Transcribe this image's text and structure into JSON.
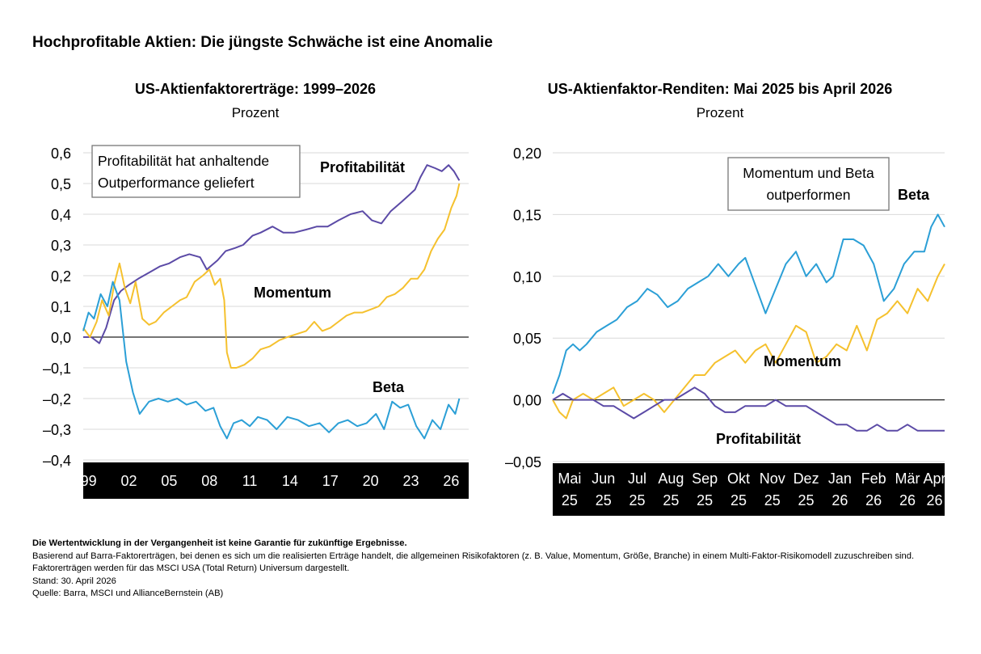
{
  "title": "Hochprofitable Aktien: Die jüngste Schwäche ist eine Anomalie",
  "footnotes": {
    "disclaimer": "Die Wertentwicklung in der Vergangenheit ist keine Garantie für zukünftige Ergebnisse.",
    "basis": "Basierend auf Barra-Faktorerträgen, bei denen es sich um die realisierten Erträge handelt, die allgemeinen Risikofaktoren (z. B. Value, Momentum, Größe, Branche) in einem Multi-Faktor-Risikomodell zuzuschreiben sind. Faktorerträgen werden für das MSCI USA (Total Return) Universum dargestellt.",
    "date": "Stand: 30. April 2026",
    "source": "Quelle: Barra, MSCI und AllianceBernstein (AB)"
  },
  "colors": {
    "profitability": "#5b4aa6",
    "momentum": "#f5c12e",
    "beta": "#2b9fd6",
    "axis_band": "#000000"
  },
  "chart_data": [
    {
      "type": "line",
      "title": "US-Aktienfaktorerträge: 1999–2026",
      "subtitle": "Prozent",
      "xlabel": "",
      "ylabel": "",
      "x_range": [
        1998.6,
        2027.3
      ],
      "ylim": [
        -0.4,
        0.6
      ],
      "y_ticks": [
        0.6,
        0.5,
        0.4,
        0.3,
        0.2,
        0.1,
        0.0,
        -0.1,
        -0.2,
        -0.3,
        -0.4
      ],
      "y_tick_labels": [
        "0,6",
        "0,5",
        "0,4",
        "0,3",
        "0,2",
        "0,1",
        "0,0",
        "–0,1",
        "–0,2",
        "–0,3",
        "–0,4"
      ],
      "x_tick_values": [
        1999,
        2002,
        2005,
        2008,
        2011,
        2014,
        2017,
        2020,
        2023,
        2026
      ],
      "x_tick_labels": [
        "99",
        "02",
        "05",
        "08",
        "11",
        "14",
        "17",
        "20",
        "23",
        "26"
      ],
      "annotation": [
        "Profitabilität hat anhaltende",
        "Outperformance geliefert"
      ],
      "series": [
        {
          "name": "Profitabilität",
          "color": "#5b4aa6",
          "x": [
            1998.6,
            1999.2,
            1999.8,
            2000.3,
            2000.9,
            2001.4,
            2002.0,
            2002.7,
            2003.5,
            2004.3,
            2005.0,
            2005.8,
            2006.5,
            2007.3,
            2007.8,
            2008.6,
            2009.2,
            2009.9,
            2010.5,
            2011.2,
            2011.8,
            2012.7,
            2013.5,
            2014.3,
            2015.2,
            2016.0,
            2016.8,
            2017.6,
            2018.5,
            2019.4,
            2020.1,
            2020.8,
            2021.5,
            2022.3,
            2022.8,
            2023.3,
            2023.7,
            2024.2,
            2024.8,
            2025.3,
            2025.8,
            2026.2,
            2026.6
          ],
          "values": [
            0.0,
            0.0,
            -0.02,
            0.03,
            0.12,
            0.15,
            0.17,
            0.19,
            0.21,
            0.23,
            0.24,
            0.26,
            0.27,
            0.26,
            0.22,
            0.25,
            0.28,
            0.29,
            0.3,
            0.33,
            0.34,
            0.36,
            0.34,
            0.34,
            0.35,
            0.36,
            0.36,
            0.38,
            0.4,
            0.41,
            0.38,
            0.37,
            0.41,
            0.44,
            0.46,
            0.48,
            0.52,
            0.56,
            0.55,
            0.54,
            0.56,
            0.54,
            0.51
          ]
        },
        {
          "name": "Momentum",
          "color": "#f5c12e",
          "x": [
            1998.6,
            1999.1,
            1999.6,
            2000.0,
            2000.5,
            2000.9,
            2001.3,
            2001.7,
            2002.1,
            2002.5,
            2003.0,
            2003.5,
            2004.0,
            2004.6,
            2005.2,
            2005.8,
            2006.3,
            2006.9,
            2007.5,
            2008.0,
            2008.4,
            2008.8,
            2009.1,
            2009.3,
            2009.6,
            2010.0,
            2010.6,
            2011.2,
            2011.8,
            2012.5,
            2013.2,
            2013.8,
            2014.5,
            2015.2,
            2015.8,
            2016.4,
            2017.0,
            2017.6,
            2018.2,
            2018.8,
            2019.4,
            2020.0,
            2020.6,
            2021.2,
            2021.8,
            2022.4,
            2023.0,
            2023.5,
            2024.0,
            2024.5,
            2025.0,
            2025.5,
            2026.0,
            2026.4,
            2026.6
          ],
          "values": [
            0.03,
            0.0,
            0.05,
            0.12,
            0.07,
            0.17,
            0.24,
            0.16,
            0.11,
            0.18,
            0.06,
            0.04,
            0.05,
            0.08,
            0.1,
            0.12,
            0.13,
            0.18,
            0.2,
            0.22,
            0.17,
            0.19,
            0.12,
            -0.05,
            -0.1,
            -0.1,
            -0.09,
            -0.07,
            -0.04,
            -0.03,
            -0.01,
            0.0,
            0.01,
            0.02,
            0.05,
            0.02,
            0.03,
            0.05,
            0.07,
            0.08,
            0.08,
            0.09,
            0.1,
            0.13,
            0.14,
            0.16,
            0.19,
            0.19,
            0.22,
            0.28,
            0.32,
            0.35,
            0.42,
            0.46,
            0.5
          ]
        },
        {
          "name": "Beta",
          "color": "#2b9fd6",
          "x": [
            1998.6,
            1999.0,
            1999.4,
            1999.9,
            2000.4,
            2000.8,
            2001.3,
            2001.8,
            2002.3,
            2002.8,
            2003.5,
            2004.2,
            2004.9,
            2005.6,
            2006.3,
            2007.0,
            2007.7,
            2008.3,
            2008.8,
            2009.3,
            2009.8,
            2010.4,
            2011.0,
            2011.6,
            2012.3,
            2013.0,
            2013.8,
            2014.6,
            2015.4,
            2016.2,
            2016.9,
            2017.6,
            2018.3,
            2019.0,
            2019.7,
            2020.4,
            2021.0,
            2021.6,
            2022.2,
            2022.8,
            2023.4,
            2024.0,
            2024.6,
            2025.2,
            2025.8,
            2026.3,
            2026.6
          ],
          "values": [
            0.02,
            0.08,
            0.06,
            0.14,
            0.1,
            0.18,
            0.12,
            -0.08,
            -0.18,
            -0.25,
            -0.21,
            -0.2,
            -0.21,
            -0.2,
            -0.22,
            -0.21,
            -0.24,
            -0.23,
            -0.29,
            -0.33,
            -0.28,
            -0.27,
            -0.29,
            -0.26,
            -0.27,
            -0.3,
            -0.26,
            -0.27,
            -0.29,
            -0.28,
            -0.31,
            -0.28,
            -0.27,
            -0.29,
            -0.28,
            -0.25,
            -0.3,
            -0.21,
            -0.23,
            -0.22,
            -0.29,
            -0.33,
            -0.27,
            -0.3,
            -0.22,
            -0.25,
            -0.2
          ]
        }
      ],
      "series_labels": [
        "Profitabilität",
        "Momentum",
        "Beta"
      ]
    },
    {
      "type": "line",
      "title": "US-Aktienfaktor-Renditen: Mai 2025 bis April 2026",
      "subtitle": "Prozent",
      "xlabel": "",
      "ylabel": "",
      "x_range": [
        0,
        11.6
      ],
      "ylim": [
        -0.05,
        0.2
      ],
      "y_ticks": [
        0.2,
        0.15,
        0.1,
        0.05,
        0.0,
        -0.05
      ],
      "y_tick_labels": [
        "0,20",
        "0,15",
        "0,10",
        "0,05",
        "0,00",
        "–0,05"
      ],
      "x_tick_values": [
        0.5,
        1.5,
        2.5,
        3.5,
        4.5,
        5.5,
        6.5,
        7.5,
        8.5,
        9.5,
        10.5,
        11.3
      ],
      "x_tick_labels_top": [
        "Mai",
        "Jun",
        "Jul",
        "Aug",
        "Sep",
        "Okt",
        "Nov",
        "Dez",
        "Jan",
        "Feb",
        "Mär",
        "Apr"
      ],
      "x_tick_labels_bottom": [
        "25",
        "25",
        "25",
        "25",
        "25",
        "25",
        "25",
        "25",
        "26",
        "26",
        "26",
        "26"
      ],
      "annotation": [
        "Momentum und Beta",
        "outperformen"
      ],
      "series": [
        {
          "name": "Beta",
          "color": "#2b9fd6",
          "x": [
            0.0,
            0.2,
            0.4,
            0.6,
            0.8,
            1.0,
            1.3,
            1.6,
            1.9,
            2.2,
            2.5,
            2.8,
            3.1,
            3.4,
            3.7,
            4.0,
            4.3,
            4.6,
            4.9,
            5.2,
            5.5,
            5.7,
            5.9,
            6.1,
            6.3,
            6.6,
            6.9,
            7.2,
            7.5,
            7.8,
            8.1,
            8.3,
            8.6,
            8.9,
            9.2,
            9.5,
            9.8,
            10.1,
            10.4,
            10.7,
            11.0,
            11.2,
            11.4,
            11.6
          ],
          "values": [
            0.005,
            0.02,
            0.04,
            0.045,
            0.04,
            0.045,
            0.055,
            0.06,
            0.065,
            0.075,
            0.08,
            0.09,
            0.085,
            0.075,
            0.08,
            0.09,
            0.095,
            0.1,
            0.11,
            0.1,
            0.11,
            0.115,
            0.1,
            0.085,
            0.07,
            0.09,
            0.11,
            0.12,
            0.1,
            0.11,
            0.095,
            0.1,
            0.13,
            0.13,
            0.125,
            0.11,
            0.08,
            0.09,
            0.11,
            0.12,
            0.12,
            0.14,
            0.15,
            0.14
          ]
        },
        {
          "name": "Momentum",
          "color": "#f5c12e",
          "x": [
            0.0,
            0.2,
            0.4,
            0.6,
            0.9,
            1.2,
            1.5,
            1.8,
            2.1,
            2.4,
            2.7,
            3.0,
            3.3,
            3.6,
            3.9,
            4.2,
            4.5,
            4.8,
            5.1,
            5.4,
            5.7,
            6.0,
            6.3,
            6.6,
            6.9,
            7.2,
            7.5,
            7.8,
            8.1,
            8.4,
            8.7,
            9.0,
            9.3,
            9.6,
            9.9,
            10.2,
            10.5,
            10.8,
            11.1,
            11.4,
            11.6
          ],
          "values": [
            0.0,
            -0.01,
            -0.015,
            0.0,
            0.005,
            0.0,
            0.005,
            0.01,
            -0.005,
            0.0,
            0.005,
            0.0,
            -0.01,
            0.0,
            0.01,
            0.02,
            0.02,
            0.03,
            0.035,
            0.04,
            0.03,
            0.04,
            0.045,
            0.03,
            0.045,
            0.06,
            0.055,
            0.03,
            0.035,
            0.045,
            0.04,
            0.06,
            0.04,
            0.065,
            0.07,
            0.08,
            0.07,
            0.09,
            0.08,
            0.1,
            0.11
          ]
        },
        {
          "name": "Profitabilität",
          "color": "#5b4aa6",
          "x": [
            0.0,
            0.3,
            0.6,
            0.9,
            1.2,
            1.5,
            1.8,
            2.1,
            2.4,
            2.7,
            3.0,
            3.3,
            3.6,
            3.9,
            4.2,
            4.5,
            4.8,
            5.1,
            5.4,
            5.7,
            6.0,
            6.3,
            6.6,
            6.9,
            7.2,
            7.5,
            7.8,
            8.1,
            8.4,
            8.7,
            9.0,
            9.3,
            9.6,
            9.9,
            10.2,
            10.5,
            10.8,
            11.1,
            11.4,
            11.6
          ],
          "values": [
            0.0,
            0.005,
            0.0,
            0.0,
            0.0,
            -0.005,
            -0.005,
            -0.01,
            -0.015,
            -0.01,
            -0.005,
            0.0,
            0.0,
            0.005,
            0.01,
            0.005,
            -0.005,
            -0.01,
            -0.01,
            -0.005,
            -0.005,
            -0.005,
            0.0,
            -0.005,
            -0.005,
            -0.005,
            -0.01,
            -0.015,
            -0.02,
            -0.02,
            -0.025,
            -0.025,
            -0.02,
            -0.025,
            -0.025,
            -0.02,
            -0.025,
            -0.025,
            -0.025,
            -0.025
          ]
        }
      ],
      "series_labels": [
        "Beta",
        "Momentum",
        "Profitabilität"
      ]
    }
  ]
}
